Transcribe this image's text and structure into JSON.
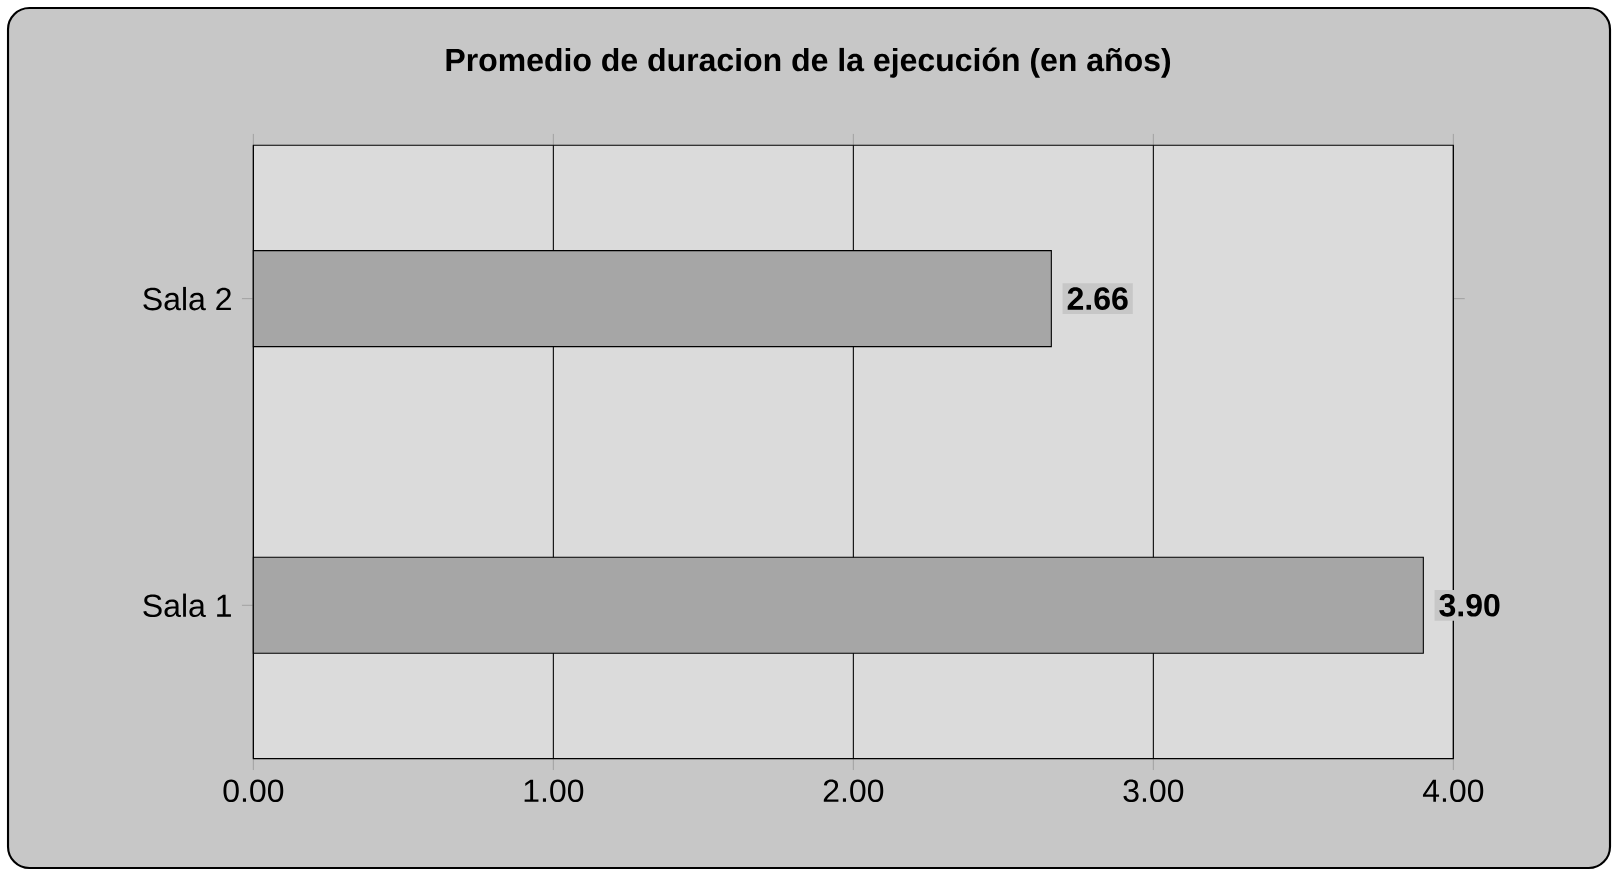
{
  "chart_data": {
    "type": "bar",
    "orientation": "horizontal",
    "title": "Promedio de duracion de la ejecución (en años)",
    "categories": [
      "Sala 2",
      "Sala 1"
    ],
    "values": [
      2.66,
      3.9
    ],
    "value_labels": [
      "2.66",
      "3.90"
    ],
    "color": "#a6a6a6",
    "xlim": [
      0,
      4
    ],
    "xticks": [
      {
        "value": 0,
        "label": "0.00"
      },
      {
        "value": 1,
        "label": "1.00"
      },
      {
        "value": 2,
        "label": "2.00"
      },
      {
        "value": 3,
        "label": "3.00"
      },
      {
        "value": 4,
        "label": "4.00"
      }
    ],
    "grid": "x"
  }
}
